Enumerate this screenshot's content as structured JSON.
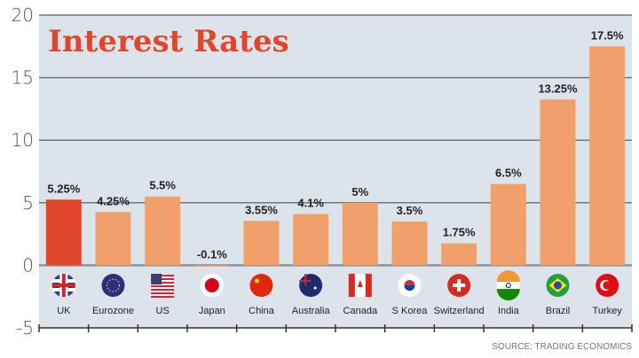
{
  "chart_data": {
    "type": "bar",
    "title": "Interest Rates",
    "categories": [
      "UK",
      "Eurozone",
      "US",
      "Japan",
      "China",
      "Australia",
      "Canada",
      "S Korea",
      "Switzerland",
      "India",
      "Brazil",
      "Turkey"
    ],
    "values": [
      5.25,
      4.25,
      5.5,
      -0.1,
      3.55,
      4.1,
      5,
      3.5,
      1.75,
      6.5,
      13.25,
      17.5
    ],
    "data_labels": [
      "5.25%",
      "4.25%",
      "5.5%",
      "-0.1%",
      "3.55%",
      "4.1%",
      "5%",
      "3.5%",
      "1.75%",
      "6.5%",
      "13.25%",
      "17.5%"
    ],
    "flag_icons": [
      "uk-flag",
      "eu-flag",
      "us-flag",
      "japan-flag",
      "china-flag",
      "australia-flag",
      "canada-flag",
      "south-korea-flag",
      "switzerland-flag",
      "india-flag",
      "brazil-flag",
      "turkey-flag"
    ],
    "ylim": [
      -5,
      20
    ],
    "yticks": [
      "20",
      "15",
      "10",
      "5",
      "0",
      "-5"
    ],
    "ytick_values": [
      20,
      15,
      10,
      5,
      0,
      -5
    ],
    "grid": true,
    "highlight_color": "#e2462a",
    "bar_color": "#f2a06a",
    "background_color": "#dde3ea",
    "source": "SOURCE: TRADING ECONOMICS"
  }
}
